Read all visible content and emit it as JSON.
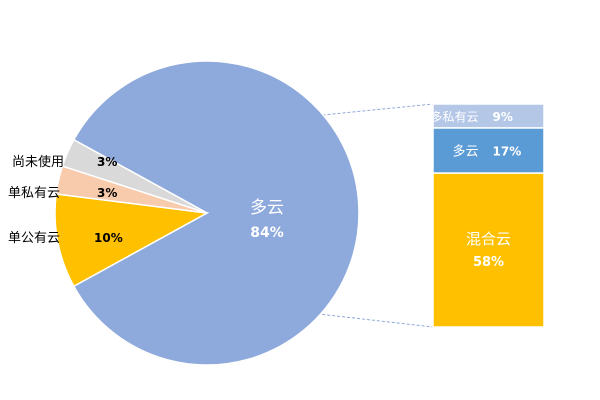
{
  "chart_data": [
    {
      "type": "pie",
      "categories": [
        "多云",
        "单公有云",
        "单私有云",
        "尚未使用"
      ],
      "values": [
        84,
        10,
        3,
        3
      ],
      "labels": [
        "84%",
        "10%",
        "3%",
        "3%"
      ],
      "colors": [
        "#8EA9DB",
        "#FFC000",
        "#F8CBAD",
        "#D9D9D9"
      ]
    },
    {
      "type": "bar",
      "stacked": true,
      "categories": [
        "混合云",
        "多云",
        "多私有云"
      ],
      "values": [
        58,
        17,
        9
      ],
      "labels": [
        "58%",
        "17%",
        "9%"
      ],
      "colors": [
        "#FFC000",
        "#5B9BD5",
        "#B4C7E7"
      ]
    }
  ]
}
